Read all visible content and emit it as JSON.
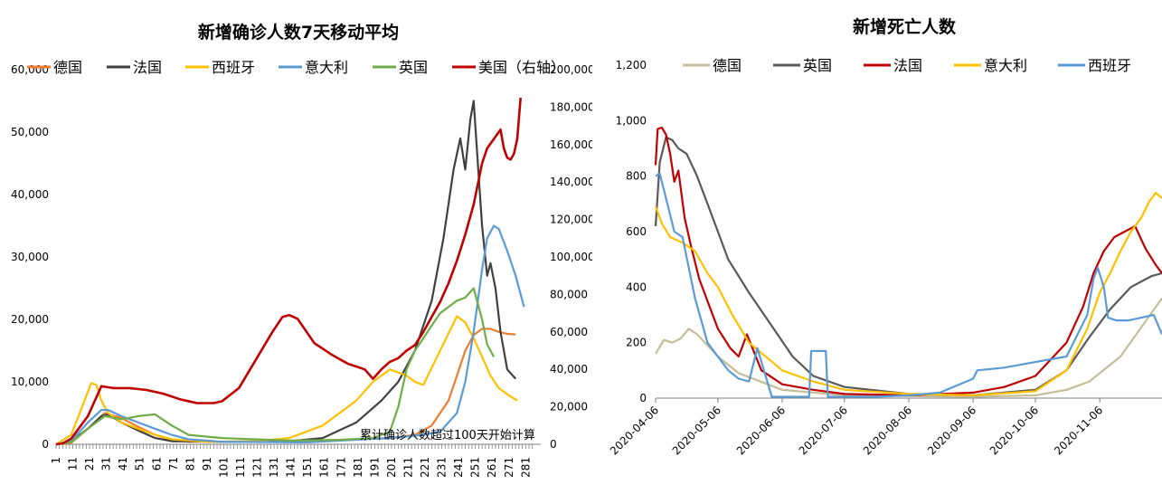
{
  "chart_data": [
    {
      "type": "line",
      "title": "新增确诊人数7天移动平均",
      "note": "累计确诊人数超过100天开始计算",
      "ylim": [
        0,
        60000
      ],
      "y2lim": [
        0,
        200000
      ],
      "y_ticks": [
        "0",
        "10,000",
        "20,000",
        "30,000",
        "40,000",
        "50,000",
        "60,000"
      ],
      "y2_ticks": [
        "0",
        "20,000",
        "40,000",
        "60,000",
        "80,000",
        "100,000",
        "120,000",
        "140,000",
        "160,000",
        "180,000",
        "200,000"
      ],
      "x_ticks": [
        "1",
        "11",
        "21",
        "31",
        "41",
        "51",
        "61",
        "71",
        "81",
        "91",
        "101",
        "111",
        "121",
        "131",
        "141",
        "151",
        "161",
        "171",
        "181",
        "191",
        "201",
        "211",
        "221",
        "231",
        "241",
        "251",
        "261",
        "271",
        "281"
      ],
      "xlim": [
        1,
        290
      ],
      "legend_position": "top",
      "series": [
        {
          "name": "德国",
          "color": "#ED7D31",
          "axis": "left",
          "x": [
            1,
            10,
            20,
            30,
            40,
            50,
            60,
            70,
            80,
            100,
            140,
            180,
            200,
            215,
            225,
            235,
            240,
            245,
            250,
            255,
            260,
            265,
            270,
            275
          ],
          "y": [
            0,
            200,
            2500,
            5000,
            4200,
            2800,
            1500,
            700,
            400,
            400,
            500,
            800,
            1000,
            1500,
            3000,
            7000,
            11000,
            15000,
            17500,
            18500,
            18500,
            18000,
            17700,
            17600
          ]
        },
        {
          "name": "法国",
          "color": "#404040",
          "axis": "left",
          "x": [
            1,
            10,
            20,
            28,
            32,
            40,
            50,
            60,
            70,
            100,
            140,
            160,
            180,
            195,
            205,
            215,
            225,
            232,
            238,
            242,
            245,
            248,
            250,
            252,
            255,
            258,
            260,
            263,
            266,
            270,
            275
          ],
          "y": [
            0,
            500,
            2500,
            4500,
            4800,
            3500,
            2200,
            1000,
            500,
            400,
            500,
            1000,
            3500,
            7000,
            10000,
            15000,
            23000,
            33000,
            44000,
            49000,
            44000,
            52000,
            55000,
            47000,
            35000,
            27000,
            29000,
            25000,
            18000,
            12000,
            10500
          ]
        },
        {
          "name": "西班牙",
          "color": "#FFC000",
          "axis": "left",
          "x": [
            1,
            10,
            18,
            22,
            25,
            28,
            32,
            40,
            50,
            60,
            70,
            90,
            120,
            140,
            160,
            180,
            190,
            200,
            210,
            215,
            220,
            230,
            240,
            245,
            250,
            255,
            260,
            265,
            270,
            276
          ],
          "y": [
            0,
            1500,
            7000,
            9800,
            9500,
            7000,
            5000,
            3500,
            2500,
            1500,
            800,
            400,
            500,
            1000,
            3000,
            7000,
            10000,
            12000,
            11000,
            10000,
            9500,
            15000,
            20500,
            19500,
            17000,
            14000,
            11000,
            9000,
            8000,
            7000
          ]
        },
        {
          "name": "意大利",
          "color": "#5B9BD5",
          "axis": "left",
          "x": [
            1,
            10,
            20,
            28,
            32,
            40,
            50,
            60,
            70,
            80,
            100,
            150,
            200,
            220,
            230,
            240,
            245,
            250,
            255,
            258,
            262,
            265,
            270,
            275,
            280
          ],
          "y": [
            0,
            500,
            3500,
            5500,
            5500,
            4500,
            3500,
            2500,
            1500,
            800,
            400,
            300,
            1000,
            1500,
            2000,
            5000,
            10000,
            18000,
            28000,
            33000,
            35000,
            34500,
            31000,
            27000,
            22000
          ]
        },
        {
          "name": "英国",
          "color": "#70AD47",
          "axis": "left",
          "x": [
            1,
            10,
            20,
            30,
            40,
            50,
            60,
            70,
            80,
            100,
            140,
            170,
            190,
            200,
            205,
            210,
            215,
            220,
            225,
            230,
            235,
            240,
            245,
            250,
            252,
            255,
            258,
            262
          ],
          "y": [
            0,
            300,
            2500,
            4500,
            4000,
            4500,
            4800,
            3000,
            1500,
            1000,
            600,
            700,
            1000,
            2000,
            6000,
            12000,
            15000,
            17000,
            19000,
            21000,
            22000,
            23000,
            23500,
            25000,
            23000,
            20000,
            16000,
            14000
          ]
        },
        {
          "name": "美国（右轴）",
          "color": "#C00000",
          "axis": "right",
          "x": [
            1,
            5,
            10,
            20,
            28,
            35,
            45,
            55,
            65,
            75,
            85,
            95,
            100,
            110,
            120,
            130,
            136,
            140,
            145,
            155,
            165,
            175,
            185,
            190,
            195,
            200,
            205,
            210,
            215,
            220,
            225,
            230,
            235,
            240,
            245,
            250,
            255,
            258,
            262,
            266,
            268,
            270,
            272,
            274,
            276,
            278
          ],
          "y": [
            0,
            500,
            3000,
            15000,
            31000,
            30000,
            30000,
            29000,
            27000,
            24000,
            22000,
            22000,
            23000,
            30000,
            45000,
            60000,
            68000,
            69000,
            67000,
            54000,
            48000,
            43000,
            40000,
            35000,
            40000,
            44000,
            46000,
            50000,
            53000,
            60000,
            68000,
            76000,
            86000,
            98000,
            112000,
            128000,
            150000,
            158000,
            163000,
            168000,
            158000,
            153000,
            152000,
            155000,
            163000,
            185000
          ]
        }
      ]
    },
    {
      "type": "line",
      "title": "新增死亡人数",
      "ylim": [
        0,
        1200
      ],
      "y_ticks": [
        "0",
        "200",
        "400",
        "600",
        "800",
        "1,000",
        "1,200"
      ],
      "x_ticks": [
        "2020-04-06",
        "2020-05-06",
        "2020-06-06",
        "2020-07-06",
        "2020-08-06",
        "2020-09-06",
        "2020-10-06",
        "2020-11-06"
      ],
      "xlim": [
        "2020-04-06",
        "2020-12-06"
      ],
      "legend_position": "top",
      "series": [
        {
          "name": "德国",
          "color": "#C4BD97",
          "x": [
            "2020-04-06",
            "2020-04-10",
            "2020-04-14",
            "2020-04-18",
            "2020-04-22",
            "2020-04-26",
            "2020-05-06",
            "2020-05-16",
            "2020-06-06",
            "2020-07-06",
            "2020-09-06",
            "2020-10-06",
            "2020-10-21",
            "2020-11-01",
            "2020-11-16",
            "2020-12-06"
          ],
          "y": [
            160,
            210,
            200,
            215,
            250,
            230,
            150,
            90,
            30,
            10,
            5,
            10,
            30,
            60,
            150,
            360
          ]
        },
        {
          "name": "英国",
          "color": "#595959",
          "x": [
            "2020-04-06",
            "2020-04-08",
            "2020-04-11",
            "2020-04-14",
            "2020-04-17",
            "2020-04-21",
            "2020-04-26",
            "2020-05-01",
            "2020-05-06",
            "2020-05-11",
            "2020-05-21",
            "2020-06-01",
            "2020-06-11",
            "2020-06-21",
            "2020-07-06",
            "2020-08-06",
            "2020-09-06",
            "2020-10-06",
            "2020-10-21",
            "2020-11-01",
            "2020-11-11",
            "2020-11-21",
            "2020-12-01",
            "2020-12-06"
          ],
          "y": [
            620,
            850,
            940,
            930,
            900,
            880,
            800,
            700,
            600,
            500,
            380,
            260,
            150,
            80,
            40,
            15,
            10,
            30,
            100,
            220,
            320,
            400,
            440,
            450
          ]
        },
        {
          "name": "法国",
          "color": "#C00000",
          "x": [
            "2020-04-06",
            "2020-04-07",
            "2020-04-09",
            "2020-04-11",
            "2020-04-13",
            "2020-04-15",
            "2020-04-17",
            "2020-04-20",
            "2020-04-23",
            "2020-04-27",
            "2020-05-01",
            "2020-05-06",
            "2020-05-12",
            "2020-05-16",
            "2020-05-20",
            "2020-05-27",
            "2020-06-06",
            "2020-06-21",
            "2020-07-06",
            "2020-08-06",
            "2020-09-06",
            "2020-09-21",
            "2020-10-06",
            "2020-10-21",
            "2020-10-29",
            "2020-11-03",
            "2020-11-08",
            "2020-11-13",
            "2020-11-18",
            "2020-11-23",
            "2020-11-28",
            "2020-12-03",
            "2020-12-06"
          ],
          "y": [
            840,
            970,
            975,
            950,
            880,
            780,
            820,
            650,
            550,
            430,
            350,
            250,
            180,
            150,
            230,
            100,
            50,
            30,
            15,
            10,
            20,
            40,
            80,
            200,
            330,
            450,
            530,
            580,
            600,
            620,
            540,
            480,
            450
          ]
        },
        {
          "name": "意大利",
          "color": "#FFC000",
          "x": [
            "2020-04-06",
            "2020-04-09",
            "2020-04-13",
            "2020-04-19",
            "2020-04-25",
            "2020-05-01",
            "2020-05-06",
            "2020-05-13",
            "2020-05-21",
            "2020-06-06",
            "2020-06-21",
            "2020-07-06",
            "2020-08-06",
            "2020-09-06",
            "2020-10-06",
            "2020-10-21",
            "2020-10-31",
            "2020-11-06",
            "2020-11-11",
            "2020-11-16",
            "2020-11-21",
            "2020-11-26",
            "2020-11-30",
            "2020-12-03",
            "2020-12-06"
          ],
          "y": [
            690,
            630,
            580,
            560,
            530,
            450,
            400,
            300,
            200,
            100,
            60,
            30,
            15,
            10,
            25,
            100,
            250,
            380,
            450,
            530,
            600,
            650,
            710,
            740,
            720
          ]
        },
        {
          "name": "西班牙",
          "color": "#5B9BD5",
          "x": [
            "2020-04-06",
            "2020-04-08",
            "2020-04-11",
            "2020-04-15",
            "2020-04-19",
            "2020-04-25",
            "2020-05-01",
            "2020-05-06",
            "2020-05-11",
            "2020-05-16",
            "2020-05-21",
            "2020-05-25",
            "2020-05-31",
            "2020-06-01",
            "2020-06-03",
            "2020-06-19",
            "2020-06-20",
            "2020-06-27",
            "2020-06-28",
            "2020-07-06",
            "2020-07-21",
            "2020-08-06",
            "2020-08-21",
            "2020-09-06",
            "2020-09-08",
            "2020-09-21",
            "2020-10-06",
            "2020-10-21",
            "2020-10-31",
            "2020-11-03",
            "2020-11-05",
            "2020-11-08",
            "2020-11-10",
            "2020-11-14",
            "2020-11-20",
            "2020-11-26",
            "2020-12-02",
            "2020-12-06"
          ],
          "y": [
            800,
            810,
            720,
            600,
            580,
            360,
            200,
            150,
            100,
            70,
            60,
            180,
            30,
            5,
            5,
            5,
            170,
            170,
            5,
            5,
            5,
            10,
            20,
            70,
            100,
            110,
            130,
            150,
            300,
            430,
            470,
            400,
            290,
            280,
            280,
            290,
            300,
            230
          ]
        }
      ]
    }
  ]
}
